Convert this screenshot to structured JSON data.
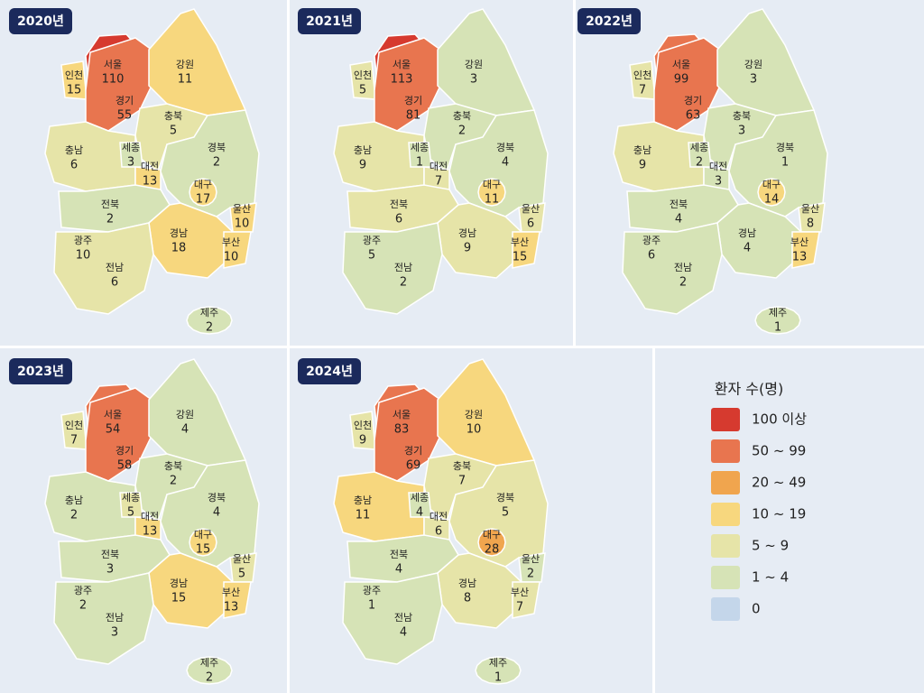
{
  "panels": [
    {
      "year": "2020년",
      "regions": [
        {
          "name": "서울",
          "value": 110
        },
        {
          "name": "인천",
          "value": 15
        },
        {
          "name": "경기",
          "value": 55
        },
        {
          "name": "강원",
          "value": 11
        },
        {
          "name": "충북",
          "value": 5
        },
        {
          "name": "충남",
          "value": 6
        },
        {
          "name": "세종",
          "value": 3
        },
        {
          "name": "대전",
          "value": 13
        },
        {
          "name": "경북",
          "value": 2
        },
        {
          "name": "대구",
          "value": 17
        },
        {
          "name": "울산",
          "value": 10
        },
        {
          "name": "전북",
          "value": 2
        },
        {
          "name": "경남",
          "value": 18
        },
        {
          "name": "부산",
          "value": 10
        },
        {
          "name": "광주",
          "value": 10
        },
        {
          "name": "전남",
          "value": 6
        },
        {
          "name": "제주",
          "value": 2
        }
      ]
    },
    {
      "year": "2021년",
      "regions": [
        {
          "name": "서울",
          "value": 113
        },
        {
          "name": "인천",
          "value": 5
        },
        {
          "name": "경기",
          "value": 81
        },
        {
          "name": "강원",
          "value": 3
        },
        {
          "name": "충북",
          "value": 2
        },
        {
          "name": "충남",
          "value": 9
        },
        {
          "name": "세종",
          "value": 1
        },
        {
          "name": "대전",
          "value": 7
        },
        {
          "name": "경북",
          "value": 4
        },
        {
          "name": "대구",
          "value": 11
        },
        {
          "name": "울산",
          "value": 6
        },
        {
          "name": "전북",
          "value": 6
        },
        {
          "name": "경남",
          "value": 9
        },
        {
          "name": "부산",
          "value": 15
        },
        {
          "name": "광주",
          "value": 5
        },
        {
          "name": "전남",
          "value": 2
        }
      ]
    },
    {
      "year": "2022년",
      "regions": [
        {
          "name": "서울",
          "value": 99
        },
        {
          "name": "인천",
          "value": 7
        },
        {
          "name": "경기",
          "value": 63
        },
        {
          "name": "강원",
          "value": 3
        },
        {
          "name": "충북",
          "value": 3
        },
        {
          "name": "충남",
          "value": 9
        },
        {
          "name": "세종",
          "value": 2
        },
        {
          "name": "대전",
          "value": 3
        },
        {
          "name": "경북",
          "value": 1
        },
        {
          "name": "대구",
          "value": 14
        },
        {
          "name": "울산",
          "value": 8
        },
        {
          "name": "전북",
          "value": 4
        },
        {
          "name": "경남",
          "value": 4
        },
        {
          "name": "부산",
          "value": 13
        },
        {
          "name": "광주",
          "value": 6
        },
        {
          "name": "전남",
          "value": 2
        },
        {
          "name": "제주",
          "value": 1
        }
      ]
    },
    {
      "year": "2023년",
      "regions": [
        {
          "name": "서울",
          "value": 54
        },
        {
          "name": "인천",
          "value": 7
        },
        {
          "name": "경기",
          "value": 58
        },
        {
          "name": "강원",
          "value": 4
        },
        {
          "name": "충북",
          "value": 2
        },
        {
          "name": "충남",
          "value": 2
        },
        {
          "name": "세종",
          "value": 5
        },
        {
          "name": "대전",
          "value": 13
        },
        {
          "name": "경북",
          "value": 4
        },
        {
          "name": "대구",
          "value": 15
        },
        {
          "name": "울산",
          "value": 5
        },
        {
          "name": "전북",
          "value": 3
        },
        {
          "name": "경남",
          "value": 15
        },
        {
          "name": "부산",
          "value": 13
        },
        {
          "name": "광주",
          "value": 2
        },
        {
          "name": "전남",
          "value": 3
        },
        {
          "name": "제주",
          "value": 2
        }
      ]
    },
    {
      "year": "2024년",
      "regions": [
        {
          "name": "서울",
          "value": 83
        },
        {
          "name": "인천",
          "value": 9
        },
        {
          "name": "경기",
          "value": 69
        },
        {
          "name": "강원",
          "value": 10
        },
        {
          "name": "충북",
          "value": 7
        },
        {
          "name": "충남",
          "value": 11
        },
        {
          "name": "세종",
          "value": 4
        },
        {
          "name": "대전",
          "value": 6
        },
        {
          "name": "경북",
          "value": 5
        },
        {
          "name": "대구",
          "value": 28
        },
        {
          "name": "울산",
          "value": 2
        },
        {
          "name": "전북",
          "value": 4
        },
        {
          "name": "경남",
          "value": 8
        },
        {
          "name": "부산",
          "value": 7
        },
        {
          "name": "광주",
          "value": 1
        },
        {
          "name": "전남",
          "value": 4
        },
        {
          "name": "제주",
          "value": 1
        }
      ]
    }
  ],
  "legend": {
    "title": "환자 수(명)",
    "items": [
      {
        "label": "100 이상",
        "color": "#d63a2f"
      },
      {
        "label": "50 ~ 99",
        "color": "#e8754f"
      },
      {
        "label": "20 ~ 49",
        "color": "#f0a54e"
      },
      {
        "label": "10 ~ 19",
        "color": "#f7d77e"
      },
      {
        "label": "5 ~ 9",
        "color": "#e6e4a8"
      },
      {
        "label": "1 ~ 4",
        "color": "#d6e3b6"
      },
      {
        "label": "0",
        "color": "#c4d6ea"
      }
    ]
  }
}
